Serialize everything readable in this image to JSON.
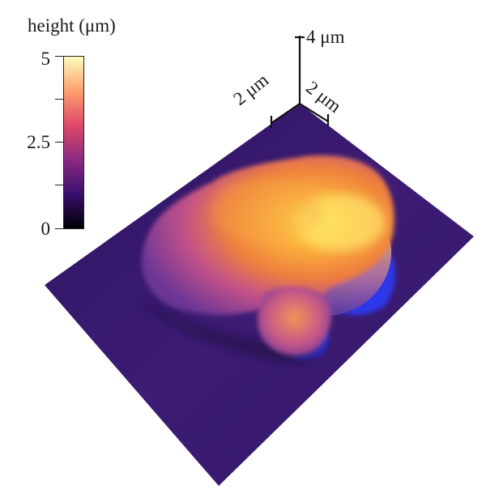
{
  "colorbar": {
    "title": "height (μm)",
    "ticks": {
      "max": "5",
      "mid": "2.5",
      "min": "0"
    },
    "gradient": [
      "#000004",
      "#3b0f70",
      "#8c2981",
      "#de4968",
      "#fe9f6d",
      "#fcfdbf"
    ]
  },
  "axes": {
    "z_label": "4 μm",
    "x_label": "2 μm",
    "y_label": "2 μm"
  },
  "colors": {
    "substrate": "#3a1a6e",
    "cell_low": "#7a3a9a",
    "cell_mid": "#f08a3a",
    "cell_high": "#ffd23a",
    "shadow_blue": "#2b3cff"
  }
}
